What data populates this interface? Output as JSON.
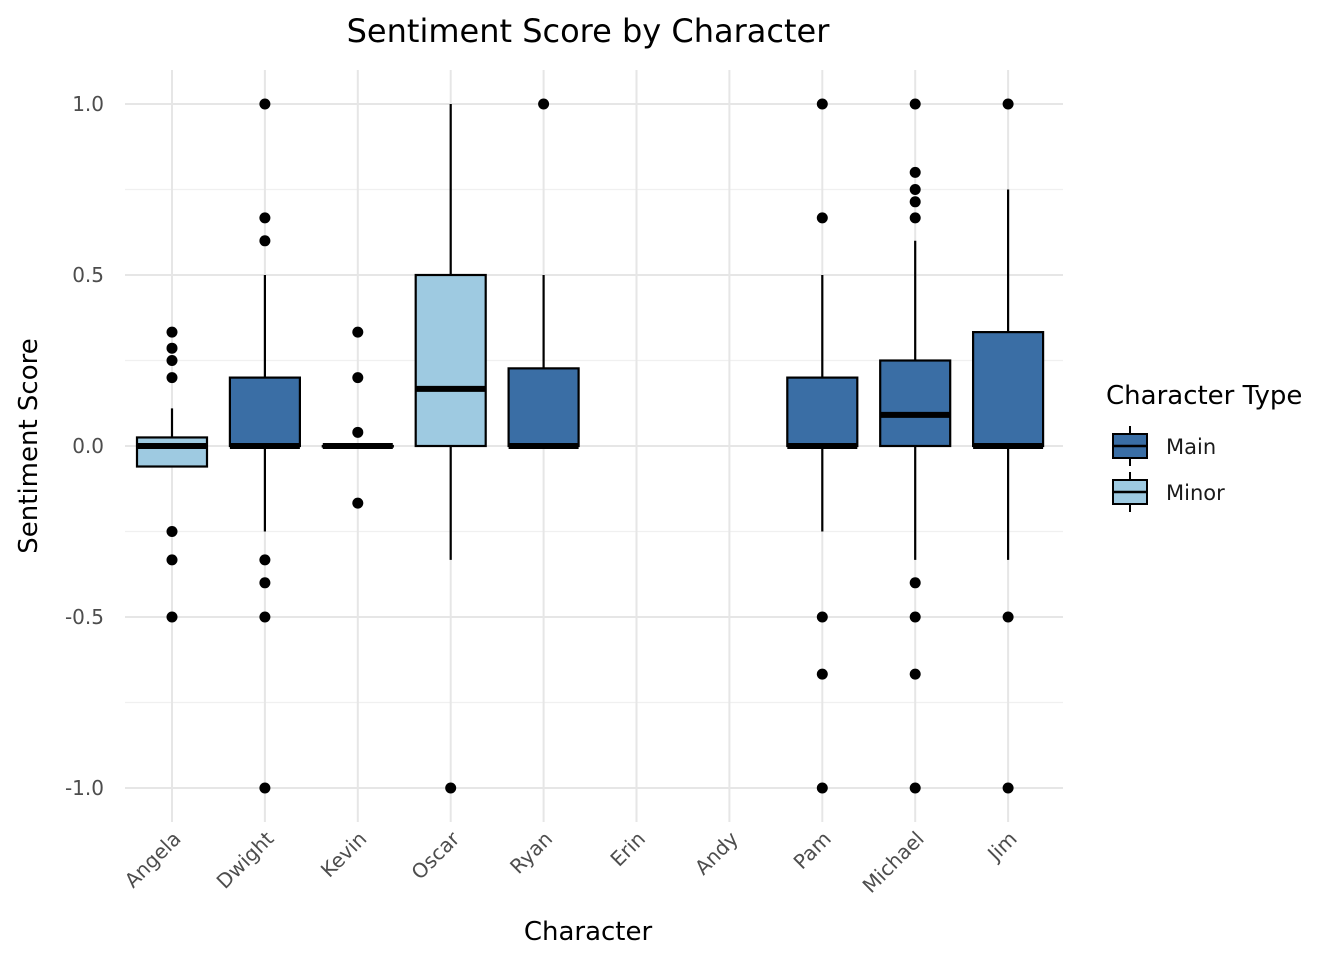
{
  "chart_data": {
    "type": "boxplot",
    "title": "Sentiment Score by Character",
    "xlabel": "Character",
    "ylabel": "Sentiment Score",
    "ylim": [
      -1.1,
      1.1
    ],
    "yticks": [
      -1.0,
      -0.5,
      0.0,
      0.5,
      1.0
    ],
    "ytick_labels": [
      "-1.0",
      "-0.5",
      "0.0",
      "0.5",
      "1.0"
    ],
    "grid": true,
    "legend": {
      "title": "Character Type",
      "position": "right",
      "entries": [
        {
          "label": "Main",
          "color": "#3a6ea5"
        },
        {
          "label": "Minor",
          "color": "#9ecae1"
        }
      ]
    },
    "categories": [
      "Angela",
      "Dwight",
      "Kevin",
      "Oscar",
      "Ryan",
      "Erin",
      "Andy",
      "Pam",
      "Michael",
      "Jim"
    ],
    "boxes": [
      {
        "character": "Angela",
        "type": "Minor",
        "lower_whisker": -0.06,
        "q1": -0.06,
        "median": 0.0,
        "q3": 0.025,
        "upper_whisker": 0.11,
        "outliers": [
          0.333,
          0.286,
          0.25,
          0.2,
          -0.25,
          -0.333,
          -0.5
        ]
      },
      {
        "character": "Dwight",
        "type": "Main",
        "lower_whisker": -0.25,
        "q1": 0.0,
        "median": 0.0,
        "q3": 0.2,
        "upper_whisker": 0.5,
        "outliers": [
          1.0,
          0.667,
          0.6,
          -0.333,
          -0.4,
          -0.5,
          -1.0
        ]
      },
      {
        "character": "Kevin",
        "type": "Main",
        "lower_whisker": 0.0,
        "q1": 0.0,
        "median": 0.0,
        "q3": 0.0,
        "upper_whisker": 0.0,
        "outliers": [
          0.333,
          0.2,
          0.04,
          -0.167
        ]
      },
      {
        "character": "Oscar",
        "type": "Minor",
        "lower_whisker": -0.333,
        "q1": 0.0,
        "median": 0.167,
        "q3": 0.5,
        "upper_whisker": 1.0,
        "outliers": [
          -1.0
        ]
      },
      {
        "character": "Ryan",
        "type": "Main",
        "lower_whisker": 0.0,
        "q1": 0.0,
        "median": 0.0,
        "q3": 0.227,
        "upper_whisker": 0.5,
        "outliers": [
          1.0
        ]
      },
      {
        "character": "Erin",
        "type": null
      },
      {
        "character": "Andy",
        "type": null
      },
      {
        "character": "Pam",
        "type": "Main",
        "lower_whisker": -0.25,
        "q1": 0.0,
        "median": 0.0,
        "q3": 0.2,
        "upper_whisker": 0.5,
        "outliers": [
          1.0,
          0.667,
          -0.5,
          -0.667,
          -1.0
        ]
      },
      {
        "character": "Michael",
        "type": "Main",
        "lower_whisker": -0.333,
        "q1": 0.0,
        "median": 0.091,
        "q3": 0.25,
        "upper_whisker": 0.6,
        "outliers": [
          1.0,
          0.8,
          0.75,
          0.714,
          0.667,
          -0.4,
          -0.5,
          -0.667,
          -1.0
        ]
      },
      {
        "character": "Jim",
        "type": "Main",
        "lower_whisker": -0.333,
        "q1": 0.0,
        "median": 0.0,
        "q3": 0.333,
        "upper_whisker": 0.75,
        "outliers": [
          1.0,
          -0.5,
          -1.0
        ]
      }
    ]
  }
}
